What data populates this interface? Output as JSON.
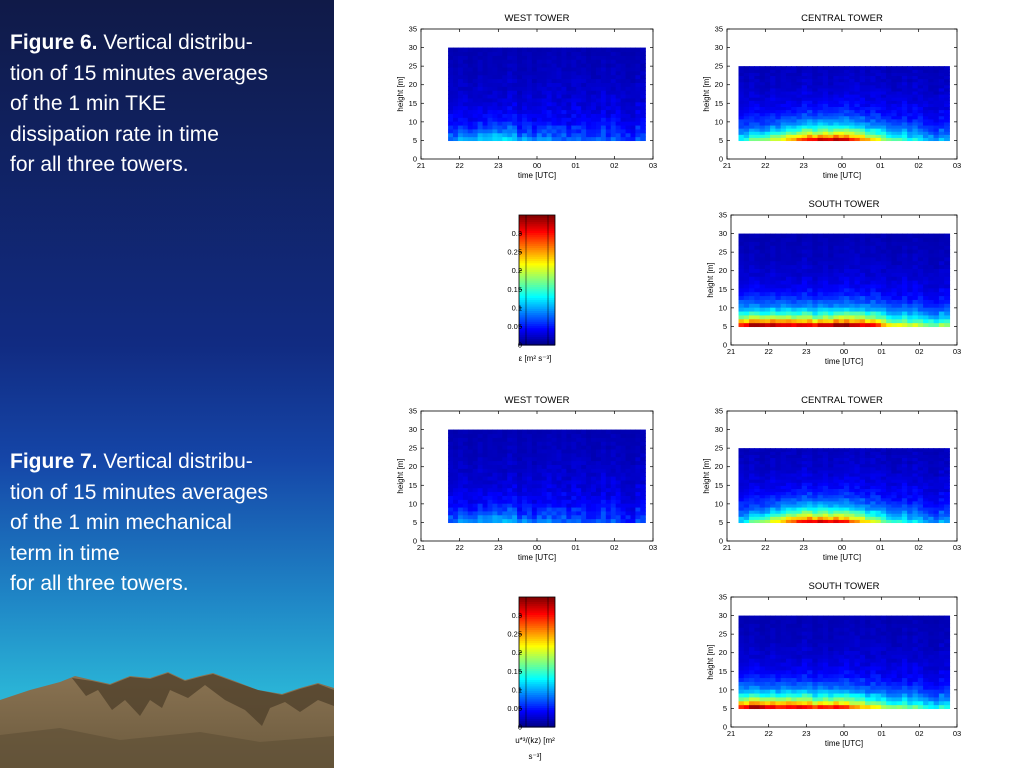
{
  "fig6": {
    "label": "Figure 6.",
    "lines": [
      " Vertical distribu-",
      "tion of 15 minutes averages",
      " of the 1 min TKE",
      " dissipation rate in time",
      " for all three towers."
    ]
  },
  "fig7": {
    "label": "Figure 7.",
    "lines": [
      " Vertical distribu-",
      "tion of 15 minutes averages",
      " of the 1 min mechanical",
      "term in time",
      " for all three towers."
    ]
  },
  "chart_data": [
    {
      "type": "heatmap",
      "figure": "6",
      "title": "WEST TOWER",
      "xlabel": "time [UTC]",
      "ylabel": "height [m]",
      "x_ticks": [
        "21",
        "22",
        "23",
        "00",
        "01",
        "02",
        "03"
      ],
      "y_ticks": [
        "0",
        "5",
        "10",
        "15",
        "20",
        "25",
        "30",
        "35"
      ],
      "xlim": [
        21,
        27
      ],
      "ylim": [
        0,
        35
      ],
      "height_range": [
        5,
        30
      ],
      "time_range": [
        21.7,
        26.8
      ],
      "near_surface_intensity": [
        0.05,
        0.06,
        0.08,
        0.1,
        0.06,
        0.05,
        0.04,
        0.03,
        0.04,
        0.03,
        0.03,
        0.02
      ]
    },
    {
      "type": "heatmap",
      "figure": "6",
      "title": "CENTRAL TOWER",
      "xlabel": "time [UTC]",
      "ylabel": "height [m]",
      "x_ticks": [
        "21",
        "22",
        "23",
        "00",
        "01",
        "02",
        "03"
      ],
      "y_ticks": [
        "0",
        "5",
        "10",
        "15",
        "20",
        "25",
        "30",
        "35"
      ],
      "xlim": [
        21,
        27
      ],
      "ylim": [
        0,
        35
      ],
      "height_range": [
        5,
        25
      ],
      "time_range": [
        21.3,
        26.8
      ],
      "near_surface_intensity": [
        0.1,
        0.14,
        0.18,
        0.25,
        0.3,
        0.32,
        0.28,
        0.2,
        0.14,
        0.1,
        0.08,
        0.05
      ]
    },
    {
      "type": "heatmap",
      "figure": "6",
      "title": "SOUTH TOWER",
      "xlabel": "time [UTC]",
      "ylabel": "height [m]",
      "x_ticks": [
        "21",
        "22",
        "23",
        "00",
        "01",
        "02",
        "03"
      ],
      "y_ticks": [
        "0",
        "5",
        "10",
        "15",
        "20",
        "25",
        "30",
        "35"
      ],
      "xlim": [
        21,
        27
      ],
      "ylim": [
        0,
        35
      ],
      "height_range": [
        5,
        30
      ],
      "time_range": [
        21.2,
        26.8
      ],
      "near_surface_intensity": [
        0.3,
        0.34,
        0.33,
        0.32,
        0.3,
        0.34,
        0.33,
        0.3,
        0.2,
        0.18,
        0.16,
        0.15
      ]
    },
    {
      "type": "colorbar",
      "figure": "6",
      "ticks": [
        "0",
        "0.05",
        "0.1",
        "0.15",
        "0.2",
        "0.25",
        "0.3"
      ],
      "tick_values": [
        0,
        0.05,
        0.1,
        0.15,
        0.2,
        0.25,
        0.3
      ],
      "range": [
        0,
        0.35
      ],
      "label_lines": [
        "ε [m² s⁻³]"
      ]
    },
    {
      "type": "heatmap",
      "figure": "7",
      "title": "WEST TOWER",
      "xlabel": "time [UTC]",
      "ylabel": "height [m]",
      "x_ticks": [
        "21",
        "22",
        "23",
        "00",
        "01",
        "02",
        "03"
      ],
      "y_ticks": [
        "0",
        "5",
        "10",
        "15",
        "20",
        "25",
        "30",
        "35"
      ],
      "xlim": [
        21,
        27
      ],
      "ylim": [
        0,
        35
      ],
      "height_range": [
        5,
        30
      ],
      "time_range": [
        21.7,
        26.8
      ],
      "near_surface_intensity": [
        0.04,
        0.05,
        0.06,
        0.08,
        0.05,
        0.04,
        0.04,
        0.03,
        0.03,
        0.03,
        0.02,
        0.02
      ]
    },
    {
      "type": "heatmap",
      "figure": "7",
      "title": "CENTRAL TOWER",
      "xlabel": "time [UTC]",
      "ylabel": "height [m]",
      "x_ticks": [
        "21",
        "22",
        "23",
        "00",
        "01",
        "02",
        "03"
      ],
      "y_ticks": [
        "0",
        "5",
        "10",
        "15",
        "20",
        "25",
        "30",
        "35"
      ],
      "xlim": [
        21,
        27
      ],
      "ylim": [
        0,
        35
      ],
      "height_range": [
        5,
        25
      ],
      "time_range": [
        21.3,
        26.8
      ],
      "near_surface_intensity": [
        0.08,
        0.14,
        0.2,
        0.28,
        0.3,
        0.3,
        0.25,
        0.18,
        0.12,
        0.09,
        0.07,
        0.05
      ]
    },
    {
      "type": "heatmap",
      "figure": "7",
      "title": "SOUTH TOWER",
      "xlabel": "time [UTC]",
      "ylabel": "height [m]",
      "x_ticks": [
        "21",
        "22",
        "23",
        "00",
        "01",
        "02",
        "03"
      ],
      "y_ticks": [
        "0",
        "5",
        "10",
        "15",
        "20",
        "25",
        "30",
        "35"
      ],
      "xlim": [
        21,
        27
      ],
      "ylim": [
        0,
        35
      ],
      "height_range": [
        5,
        30
      ],
      "time_range": [
        21.2,
        26.8
      ],
      "near_surface_intensity": [
        0.3,
        0.34,
        0.3,
        0.32,
        0.28,
        0.3,
        0.25,
        0.2,
        0.16,
        0.14,
        0.12,
        0.1
      ]
    },
    {
      "type": "colorbar",
      "figure": "7",
      "ticks": [
        "0",
        "0.05",
        "0.1",
        "0.15",
        "0.2",
        "0.25",
        "0.3"
      ],
      "tick_values": [
        0,
        0.05,
        0.1,
        0.15,
        0.2,
        0.25,
        0.3
      ],
      "range": [
        0,
        0.35
      ],
      "label_lines": [
        "u*³/(kz) [m²",
        "s⁻³]"
      ]
    }
  ]
}
